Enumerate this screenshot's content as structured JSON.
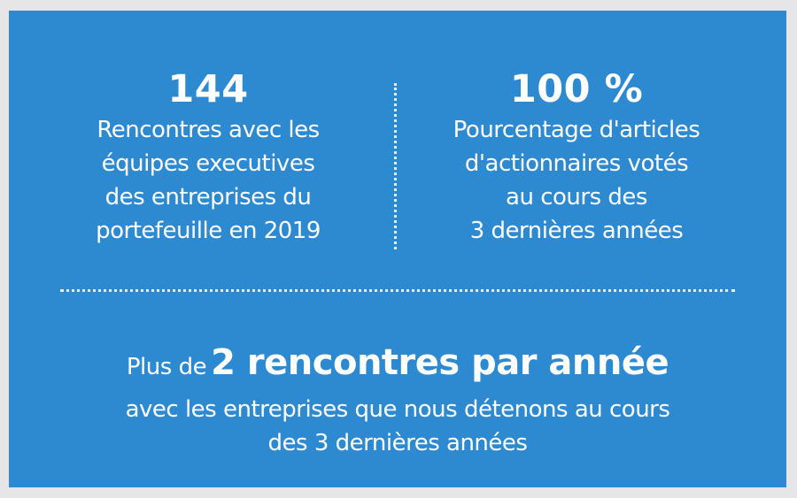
{
  "colors": {
    "panel_background": "#2e8ad0",
    "page_background": "#e6e6e8",
    "text": "#ffffff"
  },
  "stats": [
    {
      "value": "144",
      "description": "Rencontres avec les\néquipes executives\ndes entreprises du\nportefeuille en 2019"
    },
    {
      "value": "100 %",
      "description": "Pourcentage d'articles\nd'actionnaires votés\nau cours des\n3 dernières années"
    }
  ],
  "summary": {
    "prefix": "Plus de",
    "highlight": "2 rencontres par année",
    "description": "avec les entreprises que nous détenons au cours\ndes 3 dernières années"
  }
}
